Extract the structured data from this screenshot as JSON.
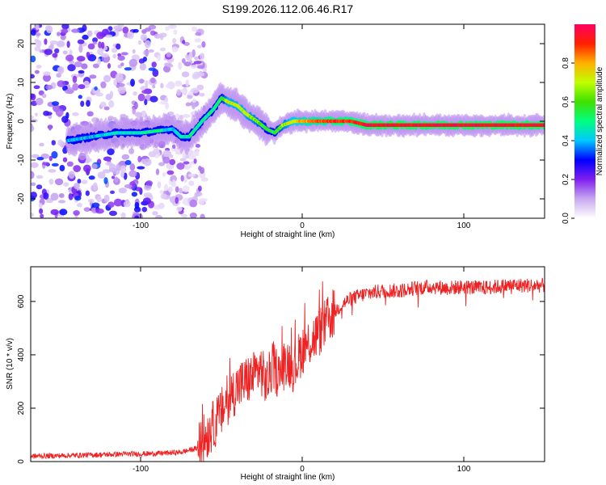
{
  "title": "S199.2026.112.06.46.R17",
  "chart_data": [
    {
      "type": "heatmap",
      "title": "S199.2026.112.06.46.R17",
      "xlabel": "Height of straight line (km)",
      "ylabel": "Frequency (Hz)",
      "xlim": [
        -168,
        150
      ],
      "ylim": [
        -25,
        25
      ],
      "xticks": [
        -100,
        0,
        100
      ],
      "yticks": [
        -20,
        -10,
        0,
        10,
        20
      ],
      "colorbar": {
        "label": "Normalized spectral amplitude",
        "range": [
          0,
          1
        ],
        "ticks": [
          0.0,
          0.2,
          0.4,
          0.6,
          0.8
        ],
        "tick_labels": [
          "0.0",
          "0.2",
          "0.4",
          "0.6",
          "0.8"
        ],
        "colors": [
          "#ffffff",
          "#c8a8f0",
          "#8020f0",
          "#0000ff",
          "#00c8ff",
          "#00ff80",
          "#40e000",
          "#c0ff00",
          "#ffb000",
          "#ff2000",
          "#ff0060"
        ]
      },
      "ridge": {
        "x": [
          -145,
          -130,
          -115,
          -100,
          -90,
          -80,
          -75,
          -70,
          -62,
          -55,
          -50,
          -46,
          -40,
          -35,
          -28,
          -22,
          -17,
          -12,
          -5,
          0,
          10,
          20,
          30,
          40,
          60,
          80,
          100,
          120,
          150
        ],
        "freq": [
          -5,
          -4,
          -3,
          -3,
          -2.5,
          -2,
          -4,
          -4,
          0,
          3,
          6,
          5,
          4,
          2,
          0,
          -2,
          -3,
          -1,
          0,
          0,
          0,
          0,
          0,
          -1,
          -1,
          -1,
          -1,
          -1,
          -1
        ],
        "amplitude": [
          0.4,
          0.4,
          0.45,
          0.45,
          0.5,
          0.4,
          0.45,
          0.5,
          0.45,
          0.5,
          0.55,
          0.7,
          0.7,
          0.7,
          0.65,
          0.55,
          0.55,
          0.65,
          0.75,
          0.8,
          0.85,
          0.9,
          0.9,
          0.95,
          0.95,
          0.95,
          0.95,
          0.95,
          0.95
        ]
      },
      "noise_region_x": [
        -168,
        -70
      ]
    },
    {
      "type": "line",
      "xlabel": "Height of straight line (km)",
      "ylabel": "SNR (10 * v/v)",
      "xlim": [
        -168,
        150
      ],
      "ylim": [
        0,
        730
      ],
      "xticks": [
        -100,
        0,
        100
      ],
      "yticks": [
        0,
        200,
        400,
        600
      ],
      "line_color": "#ee2222",
      "series": [
        {
          "name": "SNR",
          "x": [
            -168,
            -150,
            -130,
            -110,
            -90,
            -75,
            -65,
            -58,
            -52,
            -46,
            -40,
            -35,
            -30,
            -26,
            -22,
            -18,
            -14,
            -10,
            -5,
            0,
            5,
            10,
            15,
            20,
            25,
            30,
            40,
            50,
            60,
            70,
            80,
            90,
            100,
            110,
            120,
            130,
            140,
            150
          ],
          "y": [
            20,
            22,
            25,
            28,
            30,
            35,
            50,
            110,
            160,
            230,
            280,
            300,
            320,
            350,
            290,
            360,
            320,
            380,
            350,
            420,
            450,
            480,
            520,
            560,
            590,
            610,
            630,
            640,
            640,
            650,
            655,
            650,
            655,
            650,
            655,
            660,
            660,
            660
          ]
        }
      ]
    }
  ]
}
